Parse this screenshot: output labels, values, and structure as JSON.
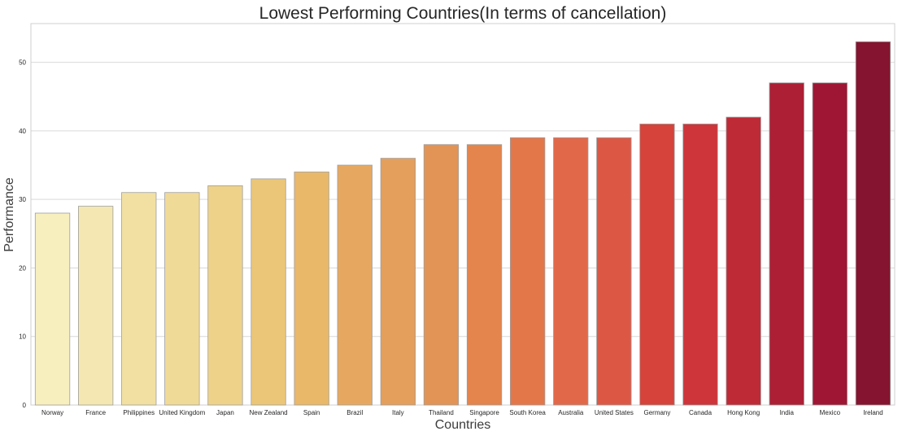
{
  "chart_data": {
    "type": "bar",
    "title": "Lowest Performing Countries(In terms of cancellation)",
    "xlabel": "Countries",
    "ylabel": "Performance",
    "categories": [
      "Norway",
      "France",
      "Philippines",
      "United Kingdom",
      "Japan",
      "New Zealand",
      "Spain",
      "Brazil",
      "Italy",
      "Thailand",
      "Singapore",
      "South Korea",
      "Australia",
      "United States",
      "Germany",
      "Canada",
      "Hong Kong",
      "India",
      "Mexico",
      "Ireland"
    ],
    "values": [
      28,
      29,
      31,
      31,
      32,
      33,
      34,
      35,
      36,
      38,
      38,
      39,
      39,
      39,
      41,
      41,
      42,
      47,
      47,
      53
    ],
    "colors": [
      "#f8efbf",
      "#f4e7b2",
      "#f1e0a2",
      "#f0da97",
      "#eed28a",
      "#ebc678",
      "#e9b869",
      "#e6a860",
      "#e49f5d",
      "#e29456",
      "#e3854c",
      "#e37749",
      "#e1694a",
      "#dd5844",
      "#d5433a",
      "#cd353a",
      "#bf2a37",
      "#ad1f35",
      "#9e1633",
      "#84142f"
    ],
    "yticks": [
      0,
      10,
      20,
      30,
      40,
      50
    ],
    "ylim": [
      0,
      55.65
    ],
    "grid": true,
    "legend": "none"
  }
}
